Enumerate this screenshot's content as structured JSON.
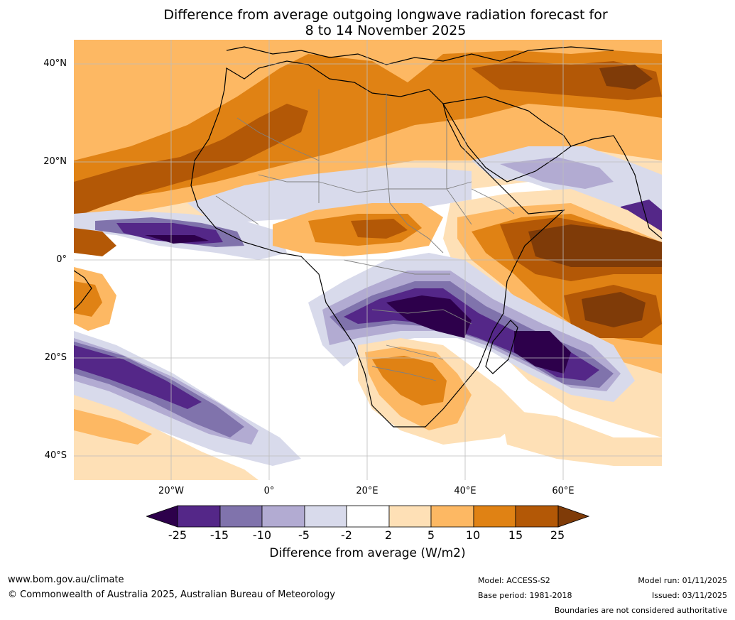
{
  "title": {
    "line1": "Difference from average outgoing longwave radiation forecast for",
    "line2": "8 to 14 November 2025"
  },
  "map": {
    "lon_range": [
      -40,
      80
    ],
    "lat_range": [
      -45,
      45
    ],
    "lat_ticks": [
      {
        "value": 40,
        "label": "40°N"
      },
      {
        "value": 20,
        "label": "20°N"
      },
      {
        "value": 0,
        "label": "0°"
      },
      {
        "value": -20,
        "label": "20°S"
      },
      {
        "value": -40,
        "label": "40°S"
      }
    ],
    "lon_ticks": [
      {
        "value": -20,
        "label": "20°W"
      },
      {
        "value": 0,
        "label": "0°"
      },
      {
        "value": 20,
        "label": "20°E"
      },
      {
        "value": 40,
        "label": "40°E"
      },
      {
        "value": 60,
        "label": "60°E"
      }
    ],
    "land_outline_color": "#000000",
    "border_color": "#808080",
    "gridline_color": "#bdbdbd"
  },
  "colorbar": {
    "title": "Difference from average (W/m2)",
    "tick_labels": [
      "-25",
      "-15",
      "-10",
      "-5",
      "-2",
      "2",
      "5",
      "10",
      "15",
      "25"
    ],
    "colors": [
      "#2d004b",
      "#542788",
      "#8073ac",
      "#b2abd2",
      "#d8daeb",
      "#ffffff",
      "#fee0b6",
      "#fdb863",
      "#e08214",
      "#b35806",
      "#7f3b08"
    ]
  },
  "footer": {
    "url": "www.bom.gov.au/climate",
    "copyright": "© Commonwealth of Australia 2025, Australian Bureau of Meteorology",
    "model": "Model: ACCESS-S2",
    "base_period": "Base period: 1981-2018",
    "model_run": "Model run: 01/11/2025",
    "issued": "Issued: 03/11/2025",
    "disclaimer": "Boundaries are not considered authoritative"
  }
}
